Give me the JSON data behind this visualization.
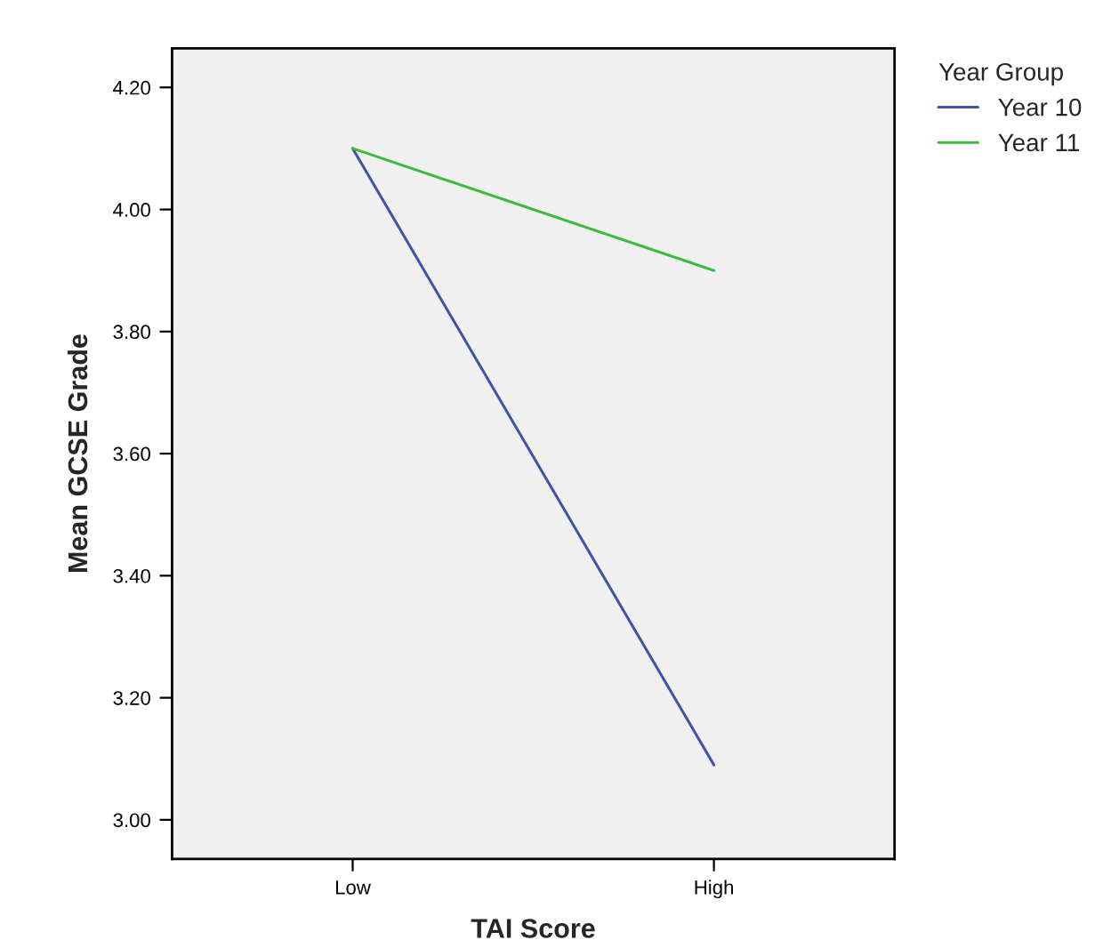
{
  "chart_data": {
    "type": "line",
    "xlabel": "TAI Score",
    "ylabel": "Mean GCSE Grade",
    "legend_title": "Year Group",
    "categories": [
      "Low",
      "High"
    ],
    "series": [
      {
        "name": "Year 10",
        "color": "#3f53a8",
        "values": [
          4.1,
          3.09
        ]
      },
      {
        "name": "Year 11",
        "color": "#3dbb3d",
        "values": [
          4.1,
          3.9
        ]
      }
    ],
    "ylim": [
      2.936,
      4.264
    ],
    "yticks": [
      {
        "value": 3.0,
        "label": "3.00"
      },
      {
        "value": 3.2,
        "label": "3.20"
      },
      {
        "value": 3.4,
        "label": "3.40"
      },
      {
        "value": 3.6,
        "label": "3.60"
      },
      {
        "value": 3.8,
        "label": "3.80"
      },
      {
        "value": 4.0,
        "label": "4.00"
      },
      {
        "value": 4.2,
        "label": "4.20"
      }
    ],
    "grid": false,
    "legend": "top right",
    "marker": "none",
    "line_style": "solid"
  }
}
